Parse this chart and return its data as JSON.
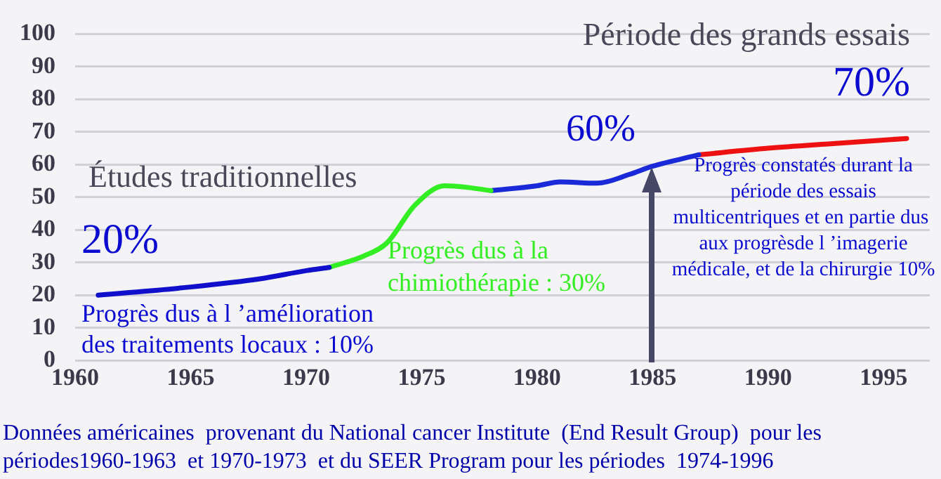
{
  "chart_data": {
    "type": "line",
    "xlim": [
      1960,
      1997
    ],
    "xticks": [
      1960,
      1965,
      1970,
      1975,
      1980,
      1985,
      1990,
      1995
    ],
    "ylim": [
      0,
      100
    ],
    "yticks": [
      0,
      10,
      20,
      30,
      40,
      50,
      60,
      70,
      80,
      90,
      100
    ],
    "grid": "y",
    "legend": false,
    "series": [
      {
        "color": "#1010cc",
        "x": [
          1961,
          1965,
          1968,
          1970,
          1971
        ],
        "values": [
          20,
          22.5,
          25,
          27.5,
          28.5
        ]
      },
      {
        "color": "#33ee22",
        "x": [
          1971,
          1972.5,
          1973.5,
          1974.7,
          1976,
          1977,
          1978
        ],
        "values": [
          28.5,
          32,
          36,
          47.5,
          53.5,
          53,
          52
        ]
      },
      {
        "color": "#1a2ad8",
        "x": [
          1978,
          1980,
          1981,
          1982.6,
          1984,
          1985,
          1987
        ],
        "values": [
          52,
          53.5,
          54.7,
          54.3,
          57,
          59.5,
          63
        ]
      },
      {
        "color": "#ee1111",
        "x": [
          1987,
          1990,
          1993,
          1996
        ],
        "values": [
          63,
          65,
          66.5,
          68
        ]
      }
    ],
    "annotations": [
      "Période des grands essais",
      "70%",
      "60%",
      "Études traditionnelles",
      "20%",
      "Progrès dus à l ’amélioration des traitements locaux : 10%",
      "Progrès dus à la chimiothérapie : 30%",
      "Progrès constatés durant la période des essais multicentriques et en partie dus  aux progrèsde l ’imagerie médicale, et de la chirurgie 10%",
      "Données américaines  provenant du National cancer Institute  (End Result Group)  pour les périodes1960-1963  et 1970-1973  et du SEER Program pour les périodes  1974-1996"
    ]
  }
}
